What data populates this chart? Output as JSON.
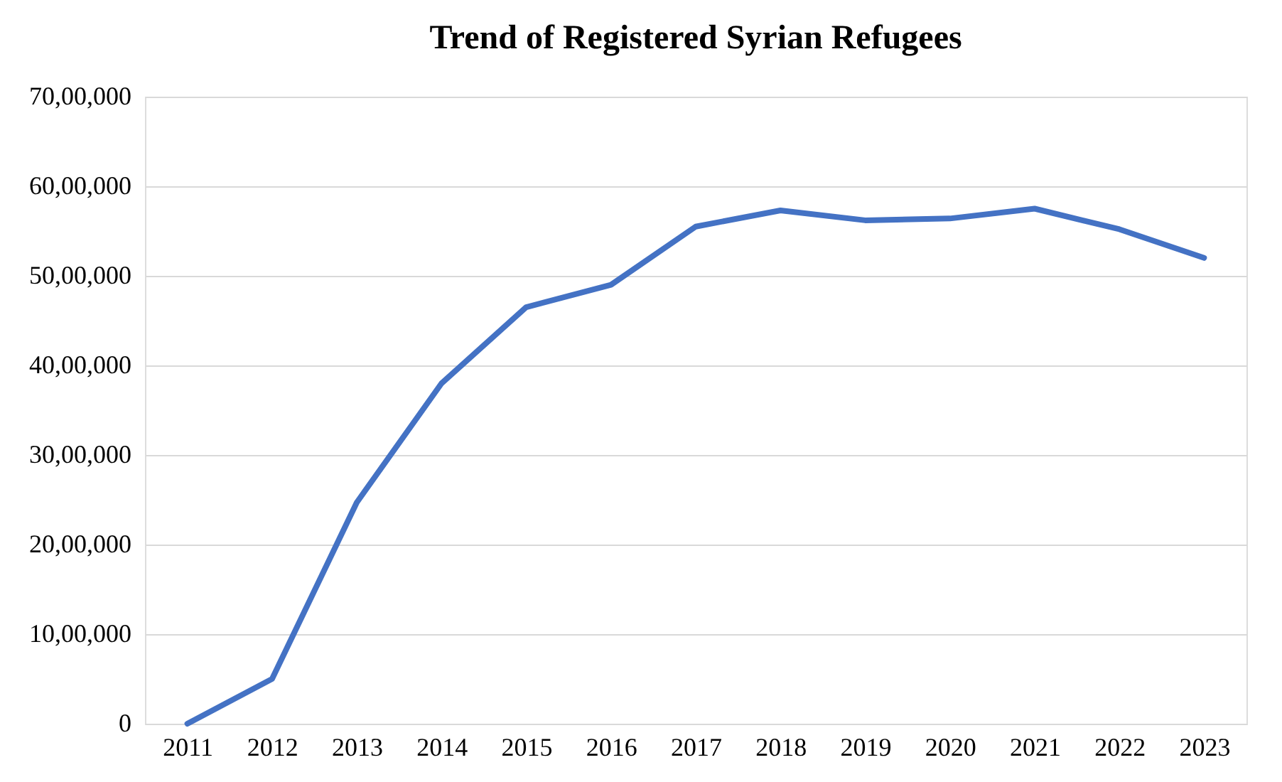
{
  "chart_data": {
    "type": "line",
    "title": "Trend of Registered Syrian Refugees",
    "categories": [
      "2011",
      "2012",
      "2013",
      "2014",
      "2015",
      "2016",
      "2017",
      "2018",
      "2019",
      "2020",
      "2021",
      "2022",
      "2023"
    ],
    "series": [
      {
        "color": "#4472c4",
        "values": [
          0,
          500000,
          2470000,
          3800000,
          4650000,
          4900000,
          5550000,
          5730000,
          5620000,
          5640000,
          5750000,
          5520000,
          5200000
        ]
      }
    ],
    "ylim": [
      0,
      7000000
    ],
    "yticks": [
      {
        "value": 0,
        "label": "0"
      },
      {
        "value": 1000000,
        "label": "10,00,000"
      },
      {
        "value": 2000000,
        "label": "20,00,000"
      },
      {
        "value": 3000000,
        "label": "30,00,000"
      },
      {
        "value": 4000000,
        "label": "40,00,000"
      },
      {
        "value": 5000000,
        "label": "50,00,000"
      },
      {
        "value": 6000000,
        "label": "60,00,000"
      },
      {
        "value": 7000000,
        "label": "70,00,000"
      }
    ],
    "grid": "y",
    "marker": "none",
    "line_style": "solid"
  }
}
